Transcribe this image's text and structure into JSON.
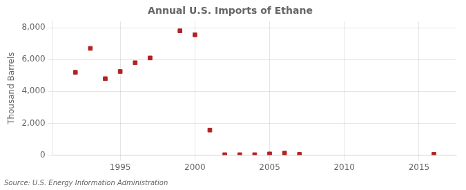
{
  "chart_data": {
    "type": "scatter",
    "title": "Annual U.S. Imports of Ethane",
    "ylabel": "Thousand Barrels",
    "annotations": [
      "Source: U.S. Energy Information Administration"
    ],
    "x": [
      1992,
      1993,
      1994,
      1995,
      1996,
      1997,
      1999,
      2000,
      2001,
      2002,
      2003,
      2004,
      2005,
      2006,
      2007,
      2016
    ],
    "values": [
      5200,
      6700,
      4800,
      5250,
      5800,
      6100,
      7800,
      7550,
      1575,
      30,
      30,
      30,
      80,
      130,
      50,
      50
    ],
    "color": "#b22222",
    "marker": "square",
    "xlim": [
      1990.5,
      2017.5
    ],
    "xticks": [
      1995,
      2000,
      2005,
      2010,
      2015
    ],
    "ylim": [
      0,
      8400
    ],
    "yticks": [
      0,
      {
        "value": 2000,
        "label": "2,000"
      },
      {
        "value": 4000,
        "label": "4,000"
      },
      {
        "value": 6000,
        "label": "6,000"
      },
      {
        "value": 8000,
        "label": "8,000"
      }
    ],
    "grid": true
  }
}
